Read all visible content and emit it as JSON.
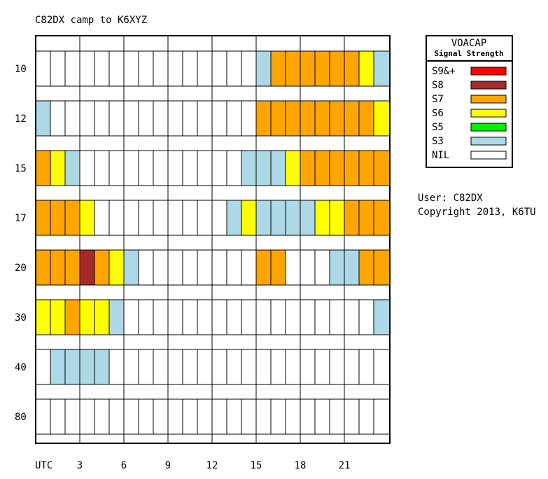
{
  "chart_data": {
    "type": "heatmap",
    "title": "C82DX camp to K6XYZ",
    "x_hours": [
      1,
      2,
      3,
      4,
      5,
      6,
      7,
      8,
      9,
      10,
      11,
      12,
      13,
      14,
      15,
      16,
      17,
      18,
      19,
      20,
      21,
      22,
      23,
      24
    ],
    "x_tick_labels": [
      "UTC",
      "3",
      "6",
      "9",
      "12",
      "15",
      "18",
      "21"
    ],
    "y_bands": [
      "10",
      "12",
      "15",
      "17",
      "20",
      "30",
      "40",
      "80"
    ],
    "levels": [
      "NIL",
      "S3",
      "S5",
      "S6",
      "S7",
      "S8",
      "S9&+"
    ],
    "rows": [
      {
        "band": "10",
        "values": [
          "NIL",
          "NIL",
          "NIL",
          "NIL",
          "NIL",
          "NIL",
          "NIL",
          "NIL",
          "NIL",
          "NIL",
          "NIL",
          "NIL",
          "NIL",
          "NIL",
          "NIL",
          "S3",
          "S7",
          "S7",
          "S7",
          "S7",
          "S7",
          "S7",
          "S6",
          "S3"
        ]
      },
      {
        "band": "12",
        "values": [
          "S3",
          "NIL",
          "NIL",
          "NIL",
          "NIL",
          "NIL",
          "NIL",
          "NIL",
          "NIL",
          "NIL",
          "NIL",
          "NIL",
          "NIL",
          "NIL",
          "NIL",
          "S7",
          "S7",
          "S7",
          "S7",
          "S7",
          "S7",
          "S7",
          "S7",
          "S6"
        ]
      },
      {
        "band": "15",
        "values": [
          "S7",
          "S6",
          "S3",
          "NIL",
          "NIL",
          "NIL",
          "NIL",
          "NIL",
          "NIL",
          "NIL",
          "NIL",
          "NIL",
          "NIL",
          "NIL",
          "S3",
          "S3",
          "S3",
          "S6",
          "S7",
          "S7",
          "S7",
          "S7",
          "S7",
          "S7"
        ]
      },
      {
        "band": "17",
        "values": [
          "S7",
          "S7",
          "S7",
          "S6",
          "NIL",
          "NIL",
          "NIL",
          "NIL",
          "NIL",
          "NIL",
          "NIL",
          "NIL",
          "NIL",
          "S3",
          "S6",
          "S3",
          "S3",
          "S3",
          "S3",
          "S6",
          "S6",
          "S7",
          "S7",
          "S7"
        ]
      },
      {
        "band": "20",
        "values": [
          "S7",
          "S7",
          "S7",
          "S8",
          "S7",
          "S6",
          "S3",
          "NIL",
          "NIL",
          "NIL",
          "NIL",
          "NIL",
          "NIL",
          "NIL",
          "NIL",
          "S7",
          "S7",
          "NIL",
          "NIL",
          "NIL",
          "S3",
          "S3",
          "S7",
          "S7"
        ]
      },
      {
        "band": "30",
        "values": [
          "S6",
          "S6",
          "S7",
          "S6",
          "S6",
          "S3",
          "NIL",
          "NIL",
          "NIL",
          "NIL",
          "NIL",
          "NIL",
          "NIL",
          "NIL",
          "NIL",
          "NIL",
          "NIL",
          "NIL",
          "NIL",
          "NIL",
          "NIL",
          "NIL",
          "NIL",
          "S3"
        ]
      },
      {
        "band": "40",
        "values": [
          "NIL",
          "S3",
          "S3",
          "S3",
          "S3",
          "NIL",
          "NIL",
          "NIL",
          "NIL",
          "NIL",
          "NIL",
          "NIL",
          "NIL",
          "NIL",
          "NIL",
          "NIL",
          "NIL",
          "NIL",
          "NIL",
          "NIL",
          "NIL",
          "NIL",
          "NIL",
          "NIL"
        ]
      },
      {
        "band": "80",
        "values": [
          "NIL",
          "NIL",
          "NIL",
          "NIL",
          "NIL",
          "NIL",
          "NIL",
          "NIL",
          "NIL",
          "NIL",
          "NIL",
          "NIL",
          "NIL",
          "NIL",
          "NIL",
          "NIL",
          "NIL",
          "NIL",
          "NIL",
          "NIL",
          "NIL",
          "NIL",
          "NIL",
          "NIL"
        ]
      }
    ]
  },
  "legend": {
    "title": "VOACAP",
    "subtitle": "Signal Strength",
    "items": [
      {
        "label": "S9&+",
        "color": "#ff0000"
      },
      {
        "label": "S8",
        "color": "#a52a2a"
      },
      {
        "label": "S7",
        "color": "#ffa500"
      },
      {
        "label": "S6",
        "color": "#ffff00"
      },
      {
        "label": "S5",
        "color": "#00ee00"
      },
      {
        "label": "S3",
        "color": "#add8e6"
      },
      {
        "label": "NIL",
        "color": "#ffffff"
      }
    ]
  },
  "info": {
    "user": "User: C82DX",
    "copyright": "Copyright 2013, K6TU"
  }
}
